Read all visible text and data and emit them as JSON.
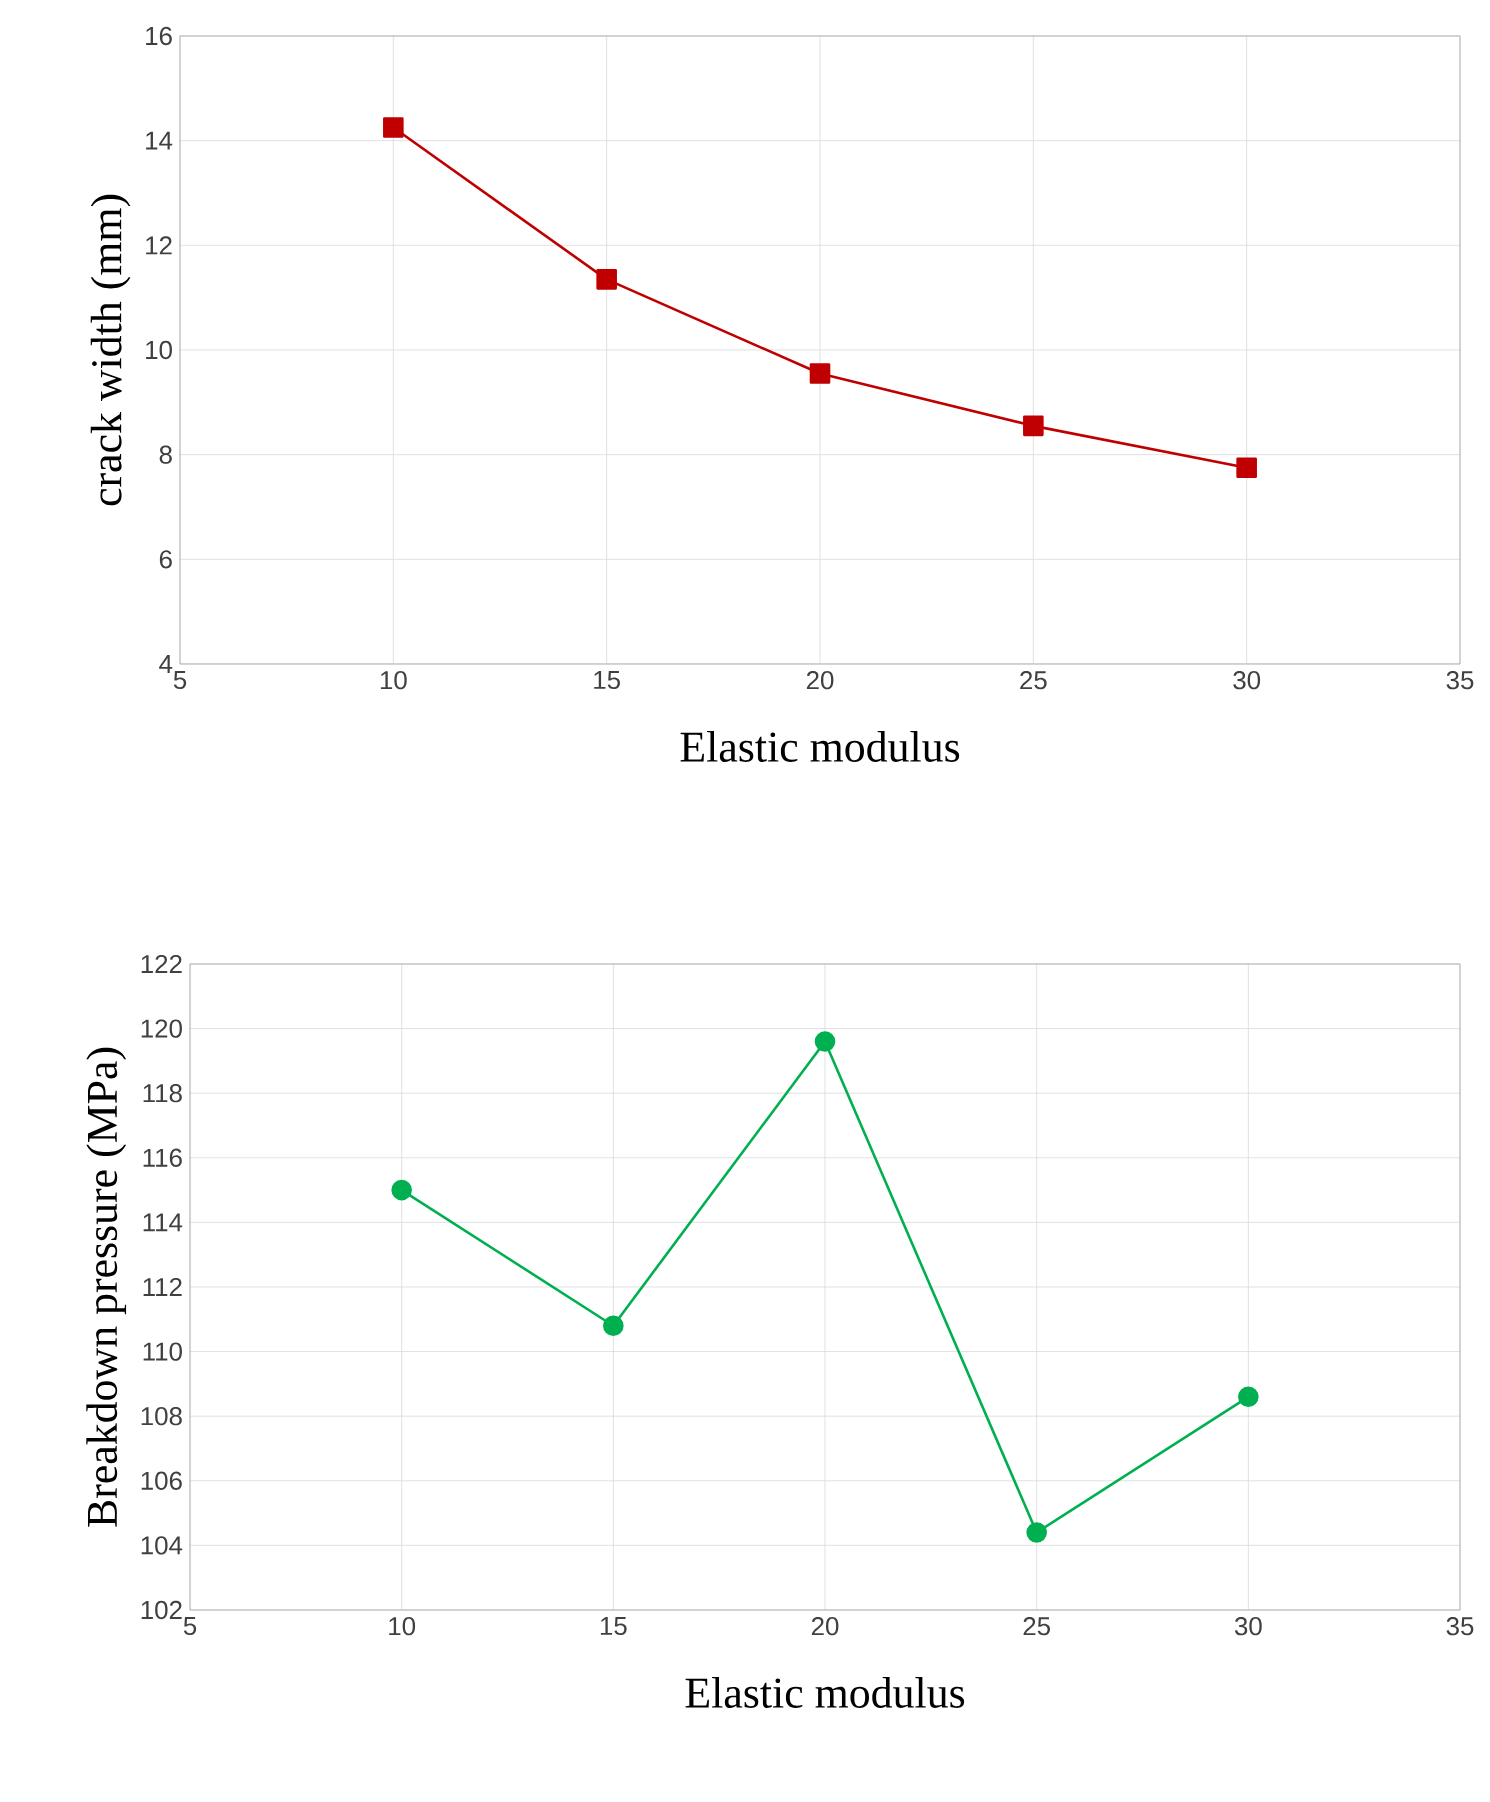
{
  "chart_data": [
    {
      "type": "line",
      "xlabel": "Elastic modulus",
      "ylabel": "crack width (mm)",
      "x": [
        10,
        15,
        20,
        25,
        30
      ],
      "series": [
        {
          "color": "#c00000",
          "values": [
            14.25,
            11.35,
            9.55,
            8.55,
            7.75
          ]
        }
      ],
      "xlim": [
        5,
        35
      ],
      "xticks": [
        5,
        10,
        15,
        20,
        25,
        30,
        35
      ],
      "ylim": [
        4,
        16
      ],
      "yticks": [
        4,
        6,
        8,
        10,
        12,
        14,
        16
      ],
      "grid": true,
      "marker": "square",
      "line_style": "solid"
    },
    {
      "type": "line",
      "xlabel": "Elastic modulus",
      "ylabel": "Breakdown pressure (MPa)",
      "x": [
        10,
        15,
        20,
        25,
        30
      ],
      "series": [
        {
          "color": "#00b050",
          "values": [
            115.0,
            110.8,
            119.6,
            104.4,
            108.6
          ]
        }
      ],
      "xlim": [
        5,
        35
      ],
      "xticks": [
        5,
        10,
        15,
        20,
        25,
        30,
        35
      ],
      "ylim": [
        102,
        122
      ],
      "yticks": [
        102,
        104,
        106,
        108,
        110,
        112,
        114,
        116,
        118,
        120,
        122
      ],
      "grid": true,
      "marker": "circle",
      "line_style": "solid"
    }
  ]
}
